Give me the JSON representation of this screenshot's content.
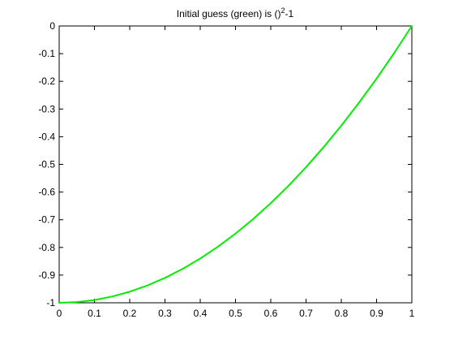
{
  "chart_data": {
    "type": "line",
    "title": "Initial guess (green) is ()",
    "title_superscript": "2",
    "title_suffix": "-1",
    "xlabel": "",
    "ylabel": "",
    "xlim": [
      0,
      1
    ],
    "ylim": [
      -1,
      0
    ],
    "grid": false,
    "legend": "none",
    "x_ticks": [
      {
        "value": 0,
        "label": "0"
      },
      {
        "value": 0.1,
        "label": "0.1"
      },
      {
        "value": 0.2,
        "label": "0.2"
      },
      {
        "value": 0.3,
        "label": "0.3"
      },
      {
        "value": 0.4,
        "label": "0.4"
      },
      {
        "value": 0.5,
        "label": "0.5"
      },
      {
        "value": 0.6,
        "label": "0.6"
      },
      {
        "value": 0.7,
        "label": "0.7"
      },
      {
        "value": 0.8,
        "label": "0.8"
      },
      {
        "value": 0.9,
        "label": "0.9"
      },
      {
        "value": 1,
        "label": "1"
      }
    ],
    "y_ticks": [
      {
        "value": 0,
        "label": "0"
      },
      {
        "value": -0.1,
        "label": "-0.1"
      },
      {
        "value": -0.2,
        "label": "-0.2"
      },
      {
        "value": -0.3,
        "label": "-0.3"
      },
      {
        "value": -0.4,
        "label": "-0.4"
      },
      {
        "value": -0.5,
        "label": "-0.5"
      },
      {
        "value": -0.6,
        "label": "-0.6"
      },
      {
        "value": -0.7,
        "label": "-0.7"
      },
      {
        "value": -0.8,
        "label": "-0.8"
      },
      {
        "value": -0.9,
        "label": "-0.9"
      },
      {
        "value": -1,
        "label": "-1"
      }
    ],
    "series": [
      {
        "color": "#00ee00",
        "x": [
          0,
          0.05,
          0.1,
          0.15,
          0.2,
          0.25,
          0.3,
          0.35,
          0.4,
          0.45,
          0.5,
          0.55,
          0.6,
          0.65,
          0.7,
          0.75,
          0.8,
          0.85,
          0.9,
          0.95,
          1
        ],
        "y": [
          -1,
          -0.9975,
          -0.99,
          -0.9775,
          -0.96,
          -0.9375,
          -0.91,
          -0.8775,
          -0.84,
          -0.7975,
          -0.75,
          -0.6975,
          -0.64,
          -0.5775,
          -0.51,
          -0.4375,
          -0.36,
          -0.2775,
          -0.19,
          -0.0975,
          0
        ]
      }
    ]
  }
}
